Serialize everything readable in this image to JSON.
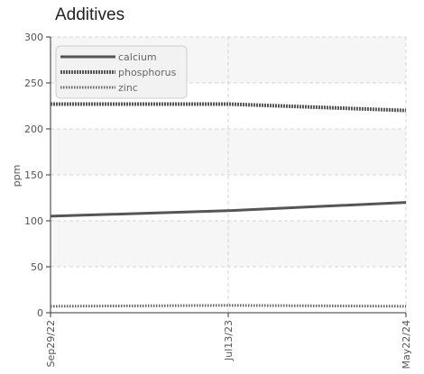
{
  "chart_data": {
    "type": "line",
    "title": "Additives",
    "xlabel": "",
    "ylabel": "ppm",
    "ylim": [
      0,
      300
    ],
    "yticks": [
      0,
      50,
      100,
      150,
      200,
      250,
      300
    ],
    "x": [
      "Sep29/22",
      "Jul13/23",
      "May22/24"
    ],
    "grid": true,
    "legend_position": "top-left",
    "series": [
      {
        "name": "calcium",
        "values": [
          105,
          111,
          120
        ],
        "color": "#555555",
        "style": "solid"
      },
      {
        "name": "phosphorus",
        "values": [
          227,
          227,
          220
        ],
        "color": "#555555",
        "style": "dotted-thick"
      },
      {
        "name": "zinc",
        "values": [
          7,
          8,
          7
        ],
        "color": "#666666",
        "style": "dotted-thin"
      }
    ]
  }
}
